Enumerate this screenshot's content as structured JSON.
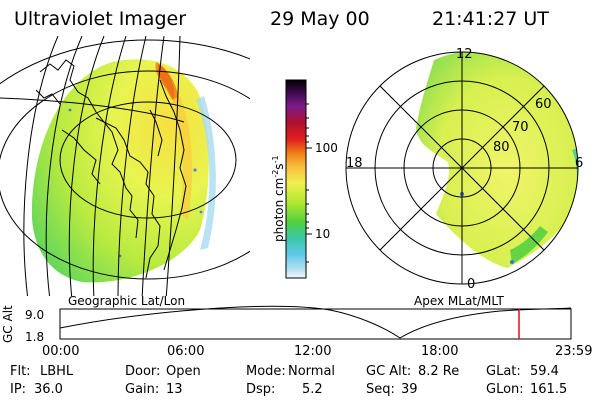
{
  "header": {
    "title": "Ultraviolet Imager",
    "date": "29 May 00",
    "time": "21:41:27 UT"
  },
  "colorbar": {
    "unit": "photon cm⁻²s⁻¹",
    "unit_main": "photon cm",
    "unit_sup": "-2",
    "unit_mid": "s",
    "unit_sup2": "-1",
    "ticks": [
      "100",
      "10"
    ],
    "colors": [
      "#000000",
      "#3a0a4a",
      "#7a1a8a",
      "#b2102a",
      "#d81818",
      "#ee5a10",
      "#f7a020",
      "#f8d84a",
      "#e8f850",
      "#a8e830",
      "#58d040",
      "#38c8a8",
      "#60c8e8",
      "#a8dcf0",
      "#e0f0f8"
    ]
  },
  "left_panel": {
    "label": "Geographic Lat/Lon"
  },
  "right_panel": {
    "label": "Apex MLat/MLT",
    "mlt_labels": [
      "12",
      "18",
      "6",
      "0"
    ],
    "lat_labels": [
      "60",
      "70",
      "80"
    ]
  },
  "altitude_plot": {
    "ylabel": "GC Alt",
    "yticks": [
      "9.0",
      "1.8"
    ],
    "xticks": [
      "00:00",
      "06:00",
      "12:00",
      "18:00",
      "23:59"
    ],
    "marker_color": "#e01010"
  },
  "status": {
    "row1": {
      "flt_label": "Flt:",
      "flt_value": "LBHL",
      "door_label": "Door:",
      "door_value": "Open",
      "mode_label": "Mode:",
      "mode_value": "Normal",
      "gcalt_label": "GC Alt:",
      "gcalt_value": "8.2 Re",
      "glat_label": "GLat:",
      "glat_value": "59.4"
    },
    "row2": {
      "ip_label": "IP:",
      "ip_value": "36.0",
      "gain_label": "Gain:",
      "gain_value": "13",
      "dsp_label": "Dsp:",
      "dsp_value": "5.2",
      "seq_label": "Seq:",
      "seq_value": "39",
      "glon_label": "GLon:",
      "glon_value": "161.5"
    }
  }
}
